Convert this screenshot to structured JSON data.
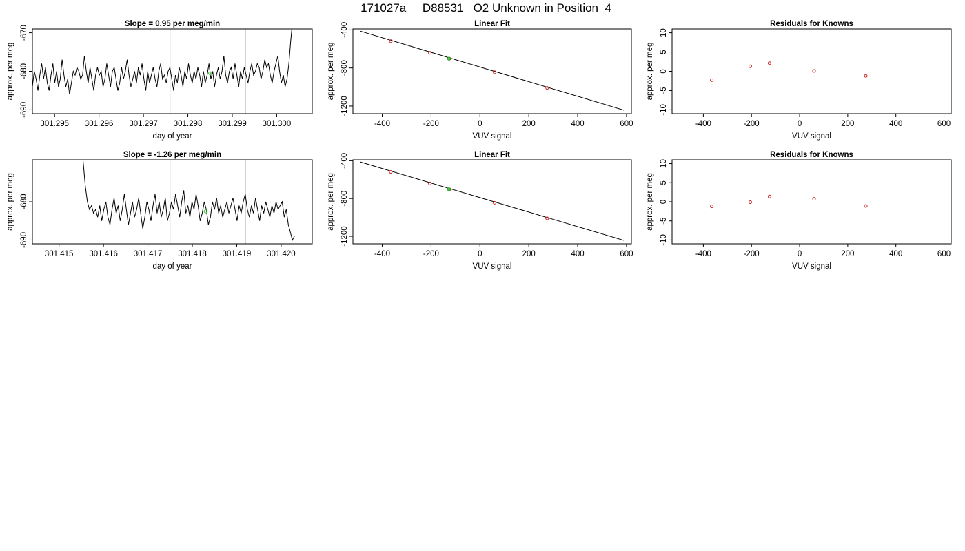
{
  "title": "171027a     D88531   O2 Unknown in Position  4",
  "colors": {
    "trace": "#000000",
    "marker_unknown": "#44cc44",
    "marker_known": "#cc2222",
    "vline": "#cccccc",
    "fit_line": "#000000"
  },
  "chart_data": [
    {
      "type": "line",
      "title": "Slope =  0.95  per meg/min",
      "xlabel": "day of year",
      "ylabel": "approx. per meg",
      "xlim": [
        301.2945,
        301.3008
      ],
      "ylim": [
        -691,
        -669
      ],
      "xticks": [
        301.295,
        301.296,
        301.297,
        301.298,
        301.299,
        301.3
      ],
      "xtick_labels": [
        "301.295",
        "301.296",
        "301.297",
        "301.298",
        "301.299",
        "301.300"
      ],
      "yticks": [
        -670,
        -680,
        -690
      ],
      "ytick_labels": [
        "-670",
        "-680",
        "-690"
      ],
      "vlines": [
        301.2976,
        301.2993
      ],
      "trace_x_start": 301.2945,
      "trace_x_end": 301.3004,
      "trace": [
        -684,
        -680,
        -682,
        -685,
        -681,
        -678,
        -682,
        -679,
        -683,
        -685,
        -681,
        -678,
        -683,
        -680,
        -684,
        -682,
        -677,
        -681,
        -684,
        -682,
        -686,
        -683,
        -680,
        -681,
        -679,
        -680,
        -682,
        -681,
        -676,
        -680,
        -683,
        -679,
        -682,
        -685,
        -681,
        -679,
        -681,
        -680,
        -684,
        -682,
        -678,
        -681,
        -684,
        -680,
        -679,
        -682,
        -685,
        -683,
        -679,
        -682,
        -680,
        -677,
        -681,
        -684,
        -682,
        -680,
        -683,
        -679,
        -681,
        -678,
        -682,
        -685,
        -680,
        -683,
        -681,
        -679,
        -682,
        -684,
        -680,
        -678,
        -682,
        -681,
        -683,
        -680,
        -679,
        -682,
        -685,
        -681,
        -683,
        -679,
        -681,
        -684,
        -680,
        -682,
        -678,
        -681,
        -683,
        -680,
        -682,
        -679,
        -681,
        -684,
        -680,
        -683,
        -681,
        -678,
        -682,
        -680,
        -684,
        -681,
        -679,
        -682,
        -680,
        -676,
        -681,
        -683,
        -680,
        -679,
        -682,
        -678,
        -681,
        -684,
        -680,
        -682,
        -679,
        -681,
        -683,
        -680,
        -678,
        -681,
        -680,
        -678,
        -679,
        -682,
        -680,
        -677,
        -679,
        -678,
        -681,
        -683,
        -680,
        -678,
        -676,
        -680,
        -683,
        -681,
        -684,
        -682,
        -678,
        -672,
        -667,
        -660
      ],
      "marker_unknown": [
        [
          301.2985,
          -680.5
        ]
      ]
    },
    {
      "type": "scatter",
      "title": "Linear Fit",
      "xlabel": "VUV signal",
      "ylabel": "approx. per meg",
      "xlim": [
        -520,
        620
      ],
      "ylim": [
        -1280,
        -390
      ],
      "xticks": [
        -400,
        -200,
        0,
        200,
        400,
        600
      ],
      "xtick_labels": [
        "-400",
        "-200",
        "0",
        "200",
        "400",
        "600"
      ],
      "yticks": [
        -400,
        -800,
        -1200
      ],
      "ytick_labels": [
        "-400",
        "-800",
        "-1200"
      ],
      "fit_line": [
        [
          -490,
          -413
        ],
        [
          590,
          -1244
        ]
      ],
      "knowns": [
        [
          -365,
          -518
        ],
        [
          -205,
          -641
        ],
        [
          -125,
          -703
        ],
        [
          60,
          -845
        ],
        [
          275,
          -1010
        ]
      ],
      "unknown": [
        [
          -127,
          -702
        ]
      ]
    },
    {
      "type": "scatter",
      "title": "Residuals for Knowns",
      "xlabel": "VUV signal",
      "ylabel": "approx. per meg",
      "xlim": [
        -530,
        630
      ],
      "ylim": [
        -11,
        11
      ],
      "xticks": [
        -400,
        -200,
        0,
        200,
        400,
        600
      ],
      "xtick_labels": [
        "-400",
        "-200",
        "0",
        "200",
        "400",
        "600"
      ],
      "yticks": [
        10,
        5,
        0,
        -5,
        -10
      ],
      "ytick_labels": [
        "10",
        "5",
        "0",
        "-5",
        "-10"
      ],
      "points": [
        [
          -365,
          -2.3
        ],
        [
          -205,
          1.3
        ],
        [
          -125,
          2.1
        ],
        [
          60,
          0.1
        ],
        [
          275,
          -1.2
        ]
      ]
    },
    {
      "type": "line",
      "title": "Slope =  -1.26  per meg/min",
      "xlabel": "day of year",
      "ylabel": "approx. per meg",
      "xlim": [
        301.4144,
        301.4207
      ],
      "ylim": [
        -691,
        -669
      ],
      "xticks": [
        301.415,
        301.416,
        301.417,
        301.418,
        301.419,
        301.42
      ],
      "xtick_labels": [
        "301.415",
        "301.416",
        "301.417",
        "301.418",
        "301.419",
        "301.420"
      ],
      "yticks": [
        -680,
        -690
      ],
      "ytick_labels": [
        "-680",
        "-690"
      ],
      "vlines": [
        301.4175,
        301.4192
      ],
      "trace_x_start": 301.4155,
      "trace_x_end": 301.4203,
      "trace": [
        -664,
        -670,
        -676,
        -680,
        -682,
        -681,
        -683,
        -682,
        -684,
        -681,
        -685,
        -682,
        -680,
        -684,
        -686,
        -682,
        -679,
        -683,
        -681,
        -685,
        -682,
        -678,
        -682,
        -686,
        -683,
        -680,
        -684,
        -682,
        -679,
        -683,
        -687,
        -684,
        -680,
        -682,
        -685,
        -681,
        -678,
        -683,
        -680,
        -684,
        -682,
        -679,
        -685,
        -683,
        -680,
        -682,
        -678,
        -681,
        -684,
        -680,
        -677,
        -683,
        -681,
        -684,
        -680,
        -682,
        -678,
        -681,
        -685,
        -683,
        -680,
        -682,
        -686,
        -684,
        -680,
        -682,
        -679,
        -683,
        -681,
        -684,
        -682,
        -680,
        -683,
        -681,
        -679,
        -682,
        -685,
        -681,
        -683,
        -680,
        -678,
        -682,
        -684,
        -681,
        -683,
        -679,
        -682,
        -685,
        -681,
        -683,
        -680,
        -682,
        -684,
        -681,
        -683,
        -680,
        -682,
        -681,
        -680,
        -684,
        -682,
        -686,
        -688,
        -690,
        -689
      ],
      "marker_unknown": [
        [
          301.4183,
          -682.5
        ]
      ]
    },
    {
      "type": "scatter",
      "title": "Linear Fit",
      "xlabel": "VUV signal",
      "ylabel": "approx. per meg",
      "xlim": [
        -520,
        620
      ],
      "ylim": [
        -1280,
        -390
      ],
      "xticks": [
        -400,
        -200,
        0,
        200,
        400,
        600
      ],
      "xtick_labels": [
        "-400",
        "-200",
        "0",
        "200",
        "400",
        "600"
      ],
      "yticks": [
        -400,
        -800,
        -1200
      ],
      "ytick_labels": [
        "-400",
        "-800",
        "-1200"
      ],
      "fit_line": [
        [
          -490,
          -413
        ],
        [
          590,
          -1244
        ]
      ],
      "knowns": [
        [
          -365,
          -518
        ],
        [
          -205,
          -641
        ],
        [
          -125,
          -703
        ],
        [
          60,
          -845
        ],
        [
          275,
          -1010
        ]
      ],
      "unknown": [
        [
          -127,
          -702
        ]
      ]
    },
    {
      "type": "scatter",
      "title": "Residuals for Knowns",
      "xlabel": "VUV signal",
      "ylabel": "approx. per meg",
      "xlim": [
        -530,
        630
      ],
      "ylim": [
        -11,
        11
      ],
      "xticks": [
        -400,
        -200,
        0,
        200,
        400,
        600
      ],
      "xtick_labels": [
        "-400",
        "-200",
        "0",
        "200",
        "400",
        "600"
      ],
      "yticks": [
        10,
        5,
        0,
        -5,
        -10
      ],
      "ytick_labels": [
        "10",
        "5",
        "0",
        "-5",
        "-10"
      ],
      "points": [
        [
          -365,
          -1.2
        ],
        [
          -205,
          -0.1
        ],
        [
          -125,
          1.4
        ],
        [
          60,
          0.8
        ],
        [
          275,
          -1.1
        ]
      ]
    }
  ]
}
